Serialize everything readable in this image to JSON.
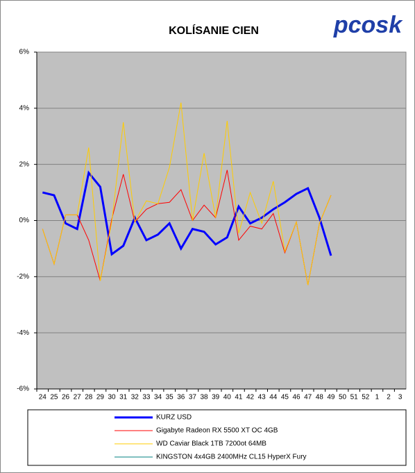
{
  "chart_data": {
    "type": "line",
    "title": "KOLÍSANIE CIEN",
    "logo": "pcosk",
    "categories": [
      "24",
      "25",
      "26",
      "27",
      "28",
      "29",
      "30",
      "31",
      "32",
      "33",
      "34",
      "35",
      "36",
      "37",
      "38",
      "39",
      "40",
      "41",
      "42",
      "43",
      "44",
      "45",
      "46",
      "47",
      "48",
      "49",
      "50",
      "51",
      "52",
      "1",
      "2",
      "3"
    ],
    "ylim": [
      -6,
      6
    ],
    "yticks": [
      {
        "value": -6,
        "label": "-6%"
      },
      {
        "value": -4,
        "label": "-4%"
      },
      {
        "value": -2,
        "label": "-2%"
      },
      {
        "value": 0,
        "label": "0%"
      },
      {
        "value": 2,
        "label": "2%"
      },
      {
        "value": 4,
        "label": "4%"
      },
      {
        "value": 6,
        "label": "6%"
      }
    ],
    "grid": true,
    "series": [
      {
        "name": "KURZ USD",
        "color": "#0000ff",
        "width": 3,
        "values": [
          1.0,
          0.9,
          -0.1,
          -0.3,
          1.7,
          1.2,
          -1.2,
          -0.9,
          0.1,
          -0.7,
          -0.5,
          -0.1,
          -1.0,
          -0.3,
          -0.4,
          -0.85,
          -0.6,
          0.5,
          -0.1,
          0.1,
          0.4,
          0.65,
          0.95,
          1.15,
          0.1,
          -1.25,
          null,
          null,
          null,
          null,
          null,
          null
        ]
      },
      {
        "name": "Gigabyte Radeon RX 5500 XT OC 4GB",
        "color": "#ff0000",
        "width": 1,
        "values": [
          -0.3,
          -1.55,
          0.2,
          0.2,
          -0.7,
          -2.15,
          0.05,
          1.65,
          -0.05,
          0.4,
          0.6,
          0.65,
          1.1,
          0,
          0.55,
          0.1,
          1.8,
          -0.7,
          -0.2,
          -0.3,
          0.25,
          -1.15,
          -0.05,
          -2.3,
          -0.1,
          0.9,
          null,
          null,
          null,
          null,
          null,
          null
        ]
      },
      {
        "name": "WD Caviar Black 1TB 7200ot 64MB",
        "color": "#ffcc00",
        "width": 1,
        "values": [
          -0.3,
          -1.55,
          0.2,
          0.2,
          2.6,
          -2.15,
          -0.05,
          3.5,
          -0.05,
          0.7,
          0.6,
          1.9,
          4.2,
          0,
          2.4,
          0.1,
          3.55,
          -0.45,
          1.0,
          -0.1,
          1.4,
          -1.1,
          -0.05,
          -2.3,
          -0.1,
          0.9,
          null,
          null,
          null,
          null,
          null,
          null
        ]
      },
      {
        "name": "KINGSTON 4x4GB 2400MHz CL15 HyperX Fury",
        "color": "#008080",
        "width": 1,
        "values": [
          null,
          null,
          null,
          null,
          null,
          null,
          null,
          null,
          null,
          null,
          null,
          null,
          null,
          null,
          null,
          null,
          null,
          null,
          null,
          null,
          null,
          null,
          null,
          null,
          null,
          null,
          null,
          null,
          null,
          null,
          null,
          null
        ]
      }
    ]
  }
}
